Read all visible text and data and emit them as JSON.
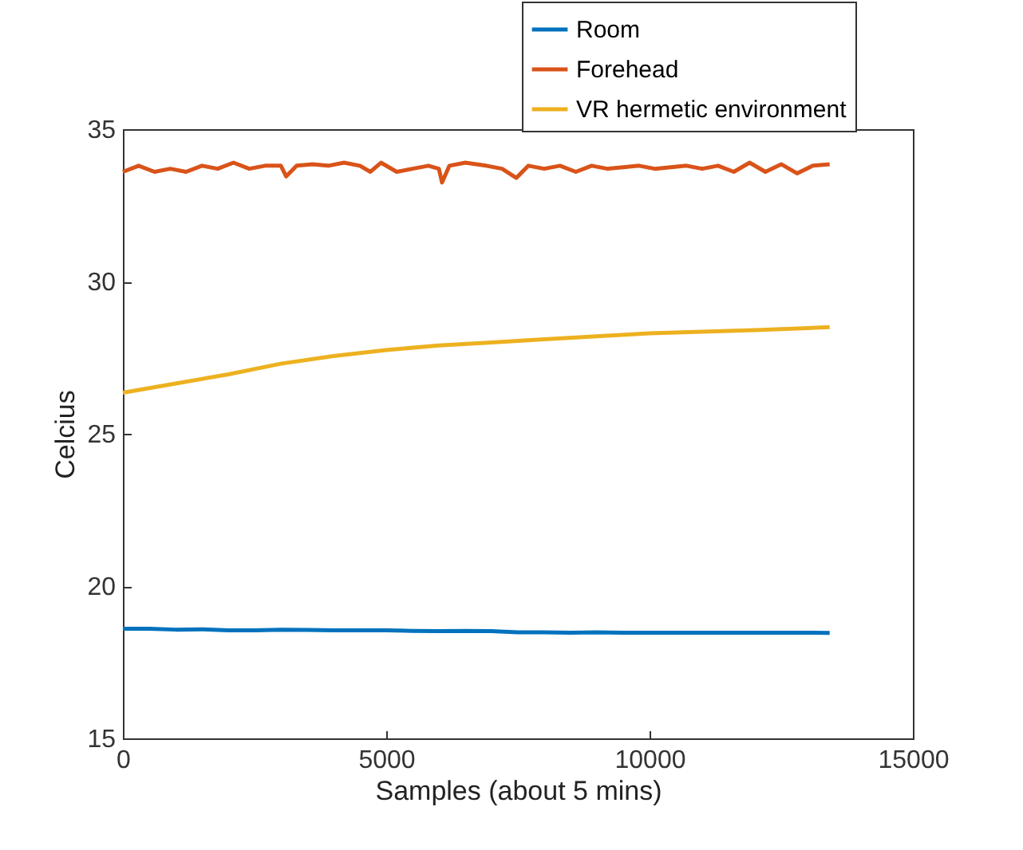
{
  "chart_data": {
    "type": "line",
    "xlabel": "Samples (about 5 mins)",
    "ylabel": "Celcius",
    "xlim": [
      0,
      15000
    ],
    "xticks": [
      0,
      5000,
      10000,
      15000
    ],
    "ylim": [
      15,
      35
    ],
    "yticks": [
      15,
      20,
      25,
      30,
      35
    ],
    "grid": false,
    "legend": "top right",
    "line_style": "solid",
    "marker": "none",
    "series": [
      {
        "name": "Room",
        "color": "#0072bd",
        "x": [
          0,
          500,
          1000,
          1500,
          2000,
          2500,
          3000,
          3500,
          4000,
          4500,
          5000,
          5500,
          6000,
          6500,
          7000,
          7500,
          8000,
          8500,
          9000,
          9500,
          10000,
          10500,
          11000,
          11500,
          12000,
          12500,
          13000,
          13420
        ],
        "values": [
          18.6,
          18.6,
          18.57,
          18.58,
          18.55,
          18.55,
          18.57,
          18.56,
          18.55,
          18.55,
          18.55,
          18.53,
          18.52,
          18.53,
          18.52,
          18.48,
          18.48,
          18.47,
          18.48,
          18.47,
          18.47,
          18.47,
          18.47,
          18.47,
          18.47,
          18.47,
          18.47,
          18.46
        ]
      },
      {
        "name": "Forehead",
        "color": "#d95319",
        "x": [
          0,
          300,
          600,
          900,
          1200,
          1500,
          1800,
          2100,
          2400,
          2700,
          3000,
          3100,
          3300,
          3600,
          3900,
          4200,
          4500,
          4700,
          4900,
          5200,
          5500,
          5800,
          6000,
          6060,
          6200,
          6500,
          6900,
          7200,
          7470,
          7700,
          8000,
          8300,
          8600,
          8900,
          9200,
          9500,
          9800,
          10100,
          10400,
          10700,
          11000,
          11300,
          11600,
          11900,
          12200,
          12500,
          12800,
          13100,
          13420
        ],
        "values": [
          33.6,
          33.8,
          33.6,
          33.7,
          33.6,
          33.8,
          33.7,
          33.9,
          33.7,
          33.8,
          33.8,
          33.45,
          33.8,
          33.85,
          33.8,
          33.9,
          33.8,
          33.6,
          33.9,
          33.6,
          33.7,
          33.8,
          33.7,
          33.25,
          33.8,
          33.9,
          33.8,
          33.7,
          33.4,
          33.8,
          33.7,
          33.8,
          33.6,
          33.8,
          33.7,
          33.75,
          33.8,
          33.7,
          33.75,
          33.8,
          33.7,
          33.8,
          33.6,
          33.9,
          33.6,
          33.85,
          33.55,
          33.8,
          33.85
        ]
      },
      {
        "name": "VR hermetic environment",
        "color": "#edb120",
        "x": [
          0,
          1000,
          2000,
          3000,
          4000,
          5000,
          6000,
          7000,
          8000,
          9000,
          10000,
          11000,
          12000,
          13000,
          13420
        ],
        "values": [
          26.35,
          26.65,
          26.95,
          27.3,
          27.55,
          27.75,
          27.9,
          28.0,
          28.1,
          28.2,
          28.3,
          28.35,
          28.4,
          28.47,
          28.5
        ]
      }
    ]
  }
}
